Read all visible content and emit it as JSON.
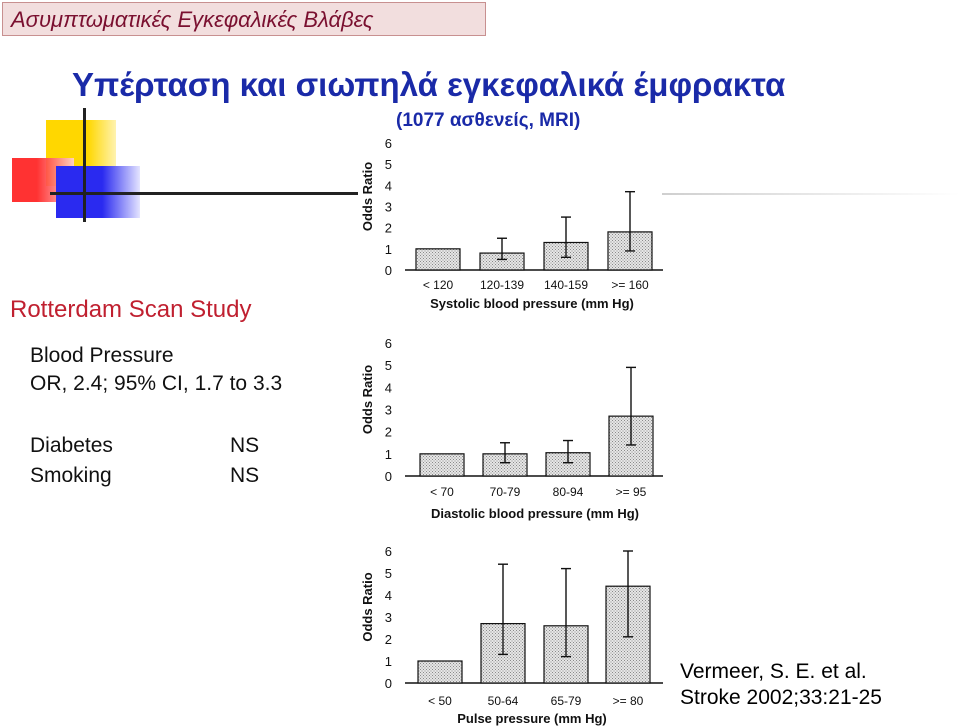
{
  "header": {
    "banner": "Ασυμπτωματικές Εγκεφαλικές Βλάβες",
    "title": "Υπέρταση και σιωπηλά εγκεφαλικά έμφρακτα",
    "subtitle": "(1077 ασθενείς, MRI)"
  },
  "study": {
    "name": "Rotterdam Scan Study",
    "bp_label": "Blood Pressure",
    "bp_value": "OR, 2.4; 95% CI, 1.7 to 3.3",
    "diabetes_label": "Diabetes",
    "diabetes_value": "NS",
    "smoking_label": "Smoking",
    "smoking_value": "NS"
  },
  "reference": {
    "line1": "Vermeer, S. E. et al.",
    "line2": "Stroke 2002;33:21-25"
  },
  "colors": {
    "title": "#1a2aa8",
    "study": "#c02030",
    "bar_fill": "#cfcfcf",
    "deco_yellow": "#ffd700",
    "deco_red": "#ff2020",
    "deco_blue": "#2a2af0"
  },
  "chart_data": [
    {
      "type": "bar",
      "categories": [
        "< 120",
        "120-139",
        "140-159",
        ">= 160"
      ],
      "values": [
        1.0,
        0.8,
        1.3,
        1.8
      ],
      "ci_low": [
        1.0,
        0.5,
        0.6,
        0.9
      ],
      "ci_high": [
        1.0,
        1.5,
        2.5,
        3.7
      ],
      "xlabel": "Systolic blood pressure (mm Hg)",
      "ylabel": "Odds Ratio",
      "yticks": [
        0,
        1,
        2,
        3,
        4,
        5,
        6
      ],
      "ylim": [
        0,
        6
      ]
    },
    {
      "type": "bar",
      "categories": [
        "< 70",
        "70-79",
        "80-94",
        ">= 95"
      ],
      "values": [
        1.0,
        1.0,
        1.05,
        2.7
      ],
      "ci_low": [
        1.0,
        0.6,
        0.6,
        1.4
      ],
      "ci_high": [
        1.0,
        1.5,
        1.6,
        4.9
      ],
      "xlabel": "Diastolic blood pressure (mm Hg)",
      "ylabel": "Odds Ratio",
      "yticks": [
        0,
        1,
        2,
        3,
        4,
        5,
        6
      ],
      "ylim": [
        0,
        6
      ]
    },
    {
      "type": "bar",
      "categories": [
        "< 50",
        "50-64",
        "65-79",
        ">= 80"
      ],
      "values": [
        1.0,
        2.7,
        2.6,
        4.4
      ],
      "ci_low": [
        1.0,
        1.3,
        1.2,
        2.1
      ],
      "ci_high": [
        1.0,
        5.4,
        5.2,
        6.0
      ],
      "xlabel": "Pulse pressure (mm Hg)",
      "ylabel": "Odds Ratio",
      "yticks": [
        0,
        1,
        2,
        3,
        4,
        5,
        6
      ],
      "ylim": [
        0,
        6
      ]
    }
  ]
}
